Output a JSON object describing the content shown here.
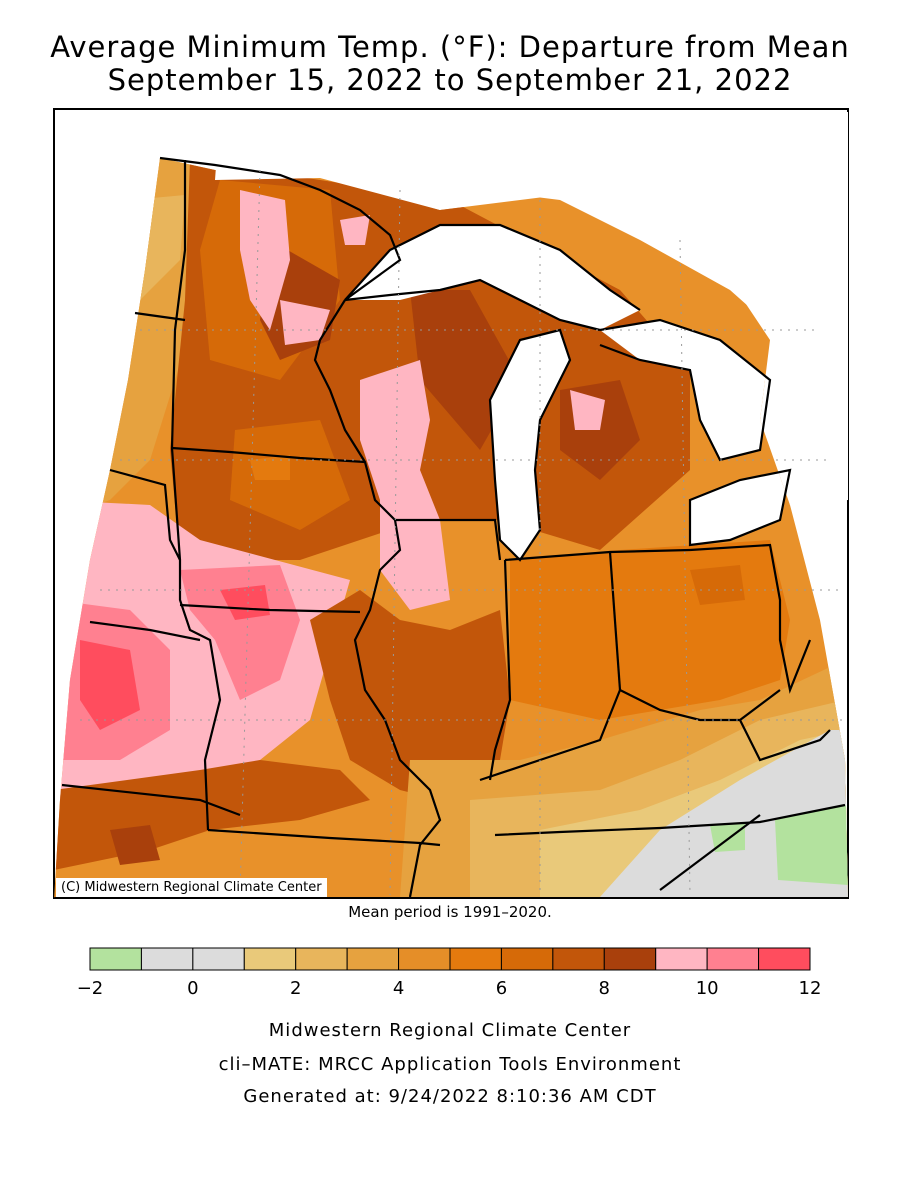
{
  "title_line1": "Average Minimum Temp. (°F): Departure from Mean",
  "title_line2": "September 15, 2022 to September 21, 2022",
  "copyright": "(C) Midwestern Regional Climate Center",
  "mean_period": "Mean period is 1991–2020.",
  "legend": {
    "colors": [
      "#b3e29e",
      "#dcdcdc",
      "#dcdcdc",
      "#e9c97a",
      "#e8b55c",
      "#e6a23f",
      "#e58e28",
      "#e47a0e",
      "#d66a08",
      "#c2560a",
      "#a9400c",
      "#ffb6c2",
      "#ff8090",
      "#ff4d5e"
    ],
    "tick_labels": [
      "−2",
      "0",
      "2",
      "4",
      "6",
      "8",
      "10",
      "12"
    ],
    "tick_values": [
      -2,
      0,
      2,
      4,
      6,
      8,
      10,
      12
    ],
    "min": -2,
    "max": 12
  },
  "footer": {
    "line1": "Midwestern Regional Climate Center",
    "line2": "cli–MATE: MRCC Application Tools Environment",
    "line3": "Generated at: 9/24/2022 8:10:36 AM CDT"
  }
}
